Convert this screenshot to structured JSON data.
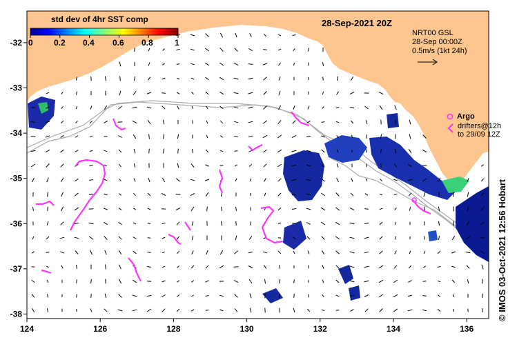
{
  "map": {
    "title": "28-Sep-2021 20Z",
    "lon_range": [
      124,
      136.6
    ],
    "lat_range": [
      -38.1,
      -31.3
    ],
    "x_ticks": [
      "124",
      "126",
      "128",
      "130",
      "132",
      "134",
      "136"
    ],
    "x_tick_values": [
      124,
      126,
      128,
      130,
      132,
      134,
      136
    ],
    "y_ticks": [
      "-32",
      "-33",
      "-34",
      "-35",
      "-36",
      "-37",
      "-38"
    ],
    "y_tick_values": [
      -32,
      -33,
      -34,
      -35,
      -36,
      -37,
      -38
    ],
    "land_color": "#fcc68e",
    "coast_line_color": "#aaaaaa",
    "drifter_color": "#ff33ff",
    "vector_color": "#000000"
  },
  "colorbar": {
    "title": "std dev of 4hr SST comp",
    "tick_labels": [
      "0",
      "0.2",
      "0.4",
      "0.6",
      "0.8",
      "1"
    ],
    "range": [
      0,
      1
    ],
    "colormap": "jet"
  },
  "info": {
    "line1": "NRT00 GSL",
    "line2": "28-Sep 00:00Z",
    "line3": "0.5m/s (1kt 24h)"
  },
  "legend": {
    "argo": "Argo",
    "drifters_line1": "drifters@12h",
    "drifters_line2": "to 29/09 12Z"
  },
  "credit": "© IMOS 03-Oct-2021 12:56 Hobart"
}
